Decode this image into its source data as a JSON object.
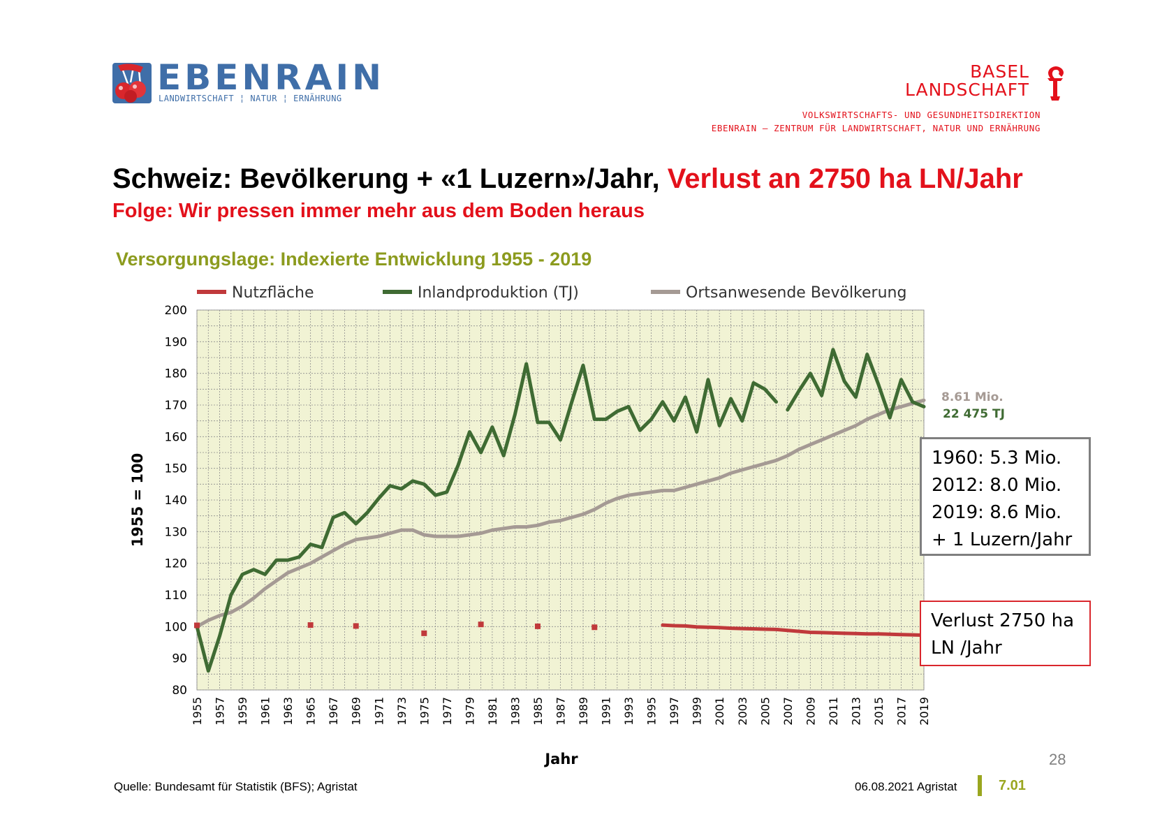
{
  "header": {
    "logo_name": "EBENRAIN",
    "logo_tagline": "LANDWIRTSCHAFT ¦ NATUR ¦ ERNÄHRUNG",
    "canton_line1": "BASEL",
    "canton_line2": "LANDSCHAFT",
    "department_line1": "VOLKSWIRTSCHAFTS- UND GESUNDHEITSDIREKTION",
    "department_line2": "EBENRAIN – ZENTRUM FÜR LANDWIRTSCHAFT, NATUR UND ERNÄHRUNG",
    "brand_blue": "#3f6ea8",
    "brand_red": "#e3111b"
  },
  "slide": {
    "title_black": "Schweiz: Bevölkerung + «1 Luzern»/Jahr, ",
    "title_red": "Verlust an 2750 ha LN/Jahr",
    "subtitle": "Folge: Wir pressen immer mehr aus dem Boden heraus",
    "page_number": "28"
  },
  "chart_data": {
    "type": "line",
    "title": "Versorgungslage: Indexierte Entwicklung 1955 - 2019",
    "xlabel": "Jahr",
    "ylabel": "1955 = 100",
    "ylim": [
      80,
      200
    ],
    "xlim": [
      1955,
      2019
    ],
    "yticks": [
      80,
      90,
      100,
      110,
      120,
      130,
      140,
      150,
      160,
      170,
      180,
      190,
      200
    ],
    "xticks": [
      1955,
      1957,
      1959,
      1961,
      1963,
      1965,
      1967,
      1969,
      1971,
      1973,
      1975,
      1977,
      1979,
      1981,
      1983,
      1985,
      1987,
      1989,
      1991,
      1993,
      1995,
      1997,
      1999,
      2001,
      2003,
      2005,
      2007,
      2009,
      2011,
      2013,
      2015,
      2017,
      2019
    ],
    "grid": true,
    "legend_position": "top",
    "background_color": "#f1f3d4",
    "series": [
      {
        "name": "Nutzfläche",
        "color": "#c0393b",
        "points": [
          [
            1955,
            100.4
          ],
          [
            1965,
            100.5
          ],
          [
            1969,
            100.2
          ],
          [
            1975,
            97.9
          ],
          [
            1980,
            100.7
          ],
          [
            1985,
            100.1
          ],
          [
            1990,
            99.8
          ],
          [
            1996,
            100.5
          ],
          [
            1997,
            100.3
          ],
          [
            1998,
            100.2
          ],
          [
            1999,
            99.9
          ],
          [
            2000,
            99.8
          ],
          [
            2001,
            99.7
          ],
          [
            2002,
            99.5
          ],
          [
            2003,
            99.4
          ],
          [
            2004,
            99.3
          ],
          [
            2005,
            99.2
          ],
          [
            2006,
            99.1
          ],
          [
            2007,
            98.8
          ],
          [
            2008,
            98.5
          ],
          [
            2009,
            98.2
          ],
          [
            2010,
            98.1
          ],
          [
            2011,
            98.0
          ],
          [
            2012,
            97.9
          ],
          [
            2013,
            97.8
          ],
          [
            2014,
            97.7
          ],
          [
            2015,
            97.7
          ],
          [
            2016,
            97.6
          ],
          [
            2017,
            97.5
          ],
          [
            2018,
            97.4
          ],
          [
            2019,
            97.3
          ]
        ]
      },
      {
        "name": "Inlandproduktion (TJ)",
        "color": "#3f6b33",
        "points": [
          [
            1955,
            100
          ],
          [
            1956,
            86
          ],
          [
            1957,
            97
          ],
          [
            1958,
            110
          ],
          [
            1959,
            116.5
          ],
          [
            1960,
            118
          ],
          [
            1961,
            116.5
          ],
          [
            1962,
            121
          ],
          [
            1963,
            121
          ],
          [
            1964,
            122
          ],
          [
            1965,
            126
          ],
          [
            1966,
            125
          ],
          [
            1967,
            134.5
          ],
          [
            1968,
            136
          ],
          [
            1969,
            132.5
          ],
          [
            1970,
            136
          ],
          [
            1971,
            140.5
          ],
          [
            1972,
            144.5
          ],
          [
            1973,
            143.5
          ],
          [
            1974,
            146
          ],
          [
            1975,
            145
          ],
          [
            1976,
            141.5
          ],
          [
            1977,
            142.5
          ],
          [
            1978,
            151
          ],
          [
            1979,
            161.5
          ],
          [
            1980,
            155
          ],
          [
            1981,
            163
          ],
          [
            1982,
            154
          ],
          [
            1983,
            167
          ],
          [
            1984,
            183
          ],
          [
            1985,
            164.5
          ],
          [
            1986,
            164.5
          ],
          [
            1987,
            159
          ],
          [
            1988,
            171
          ],
          [
            1989,
            182.5
          ],
          [
            1990,
            165.5
          ],
          [
            1991,
            165.5
          ],
          [
            1992,
            168
          ],
          [
            1993,
            169.5
          ],
          [
            1994,
            162
          ],
          [
            1995,
            165.5
          ],
          [
            1996,
            171
          ],
          [
            1997,
            165
          ],
          [
            1998,
            172.5
          ],
          [
            1999,
            161.5
          ],
          [
            2000,
            178
          ],
          [
            2001,
            163.5
          ],
          [
            2002,
            172
          ],
          [
            2003,
            165
          ],
          [
            2004,
            177
          ],
          [
            2005,
            175
          ],
          [
            2006,
            171
          ],
          [
            null,
            null
          ],
          [
            2007,
            168.5
          ],
          [
            2008,
            174.5
          ],
          [
            2009,
            180
          ],
          [
            2010,
            173
          ],
          [
            2011,
            187.5
          ],
          [
            2012,
            177.5
          ],
          [
            2013,
            172.5
          ],
          [
            2014,
            186
          ],
          [
            2015,
            176.5
          ],
          [
            2016,
            166
          ],
          [
            2017,
            178
          ],
          [
            2018,
            171
          ],
          [
            2019,
            169.5
          ]
        ]
      },
      {
        "name": "Ortsanwesende Bevölkerung",
        "color": "#a59a94",
        "points": [
          [
            1955,
            100
          ],
          [
            1956,
            102
          ],
          [
            1957,
            103.5
          ],
          [
            1958,
            104.5
          ],
          [
            1959,
            106.5
          ],
          [
            1960,
            109
          ],
          [
            1961,
            112
          ],
          [
            1962,
            114.5
          ],
          [
            1963,
            117
          ],
          [
            1964,
            118.5
          ],
          [
            1965,
            120
          ],
          [
            1966,
            122
          ],
          [
            1967,
            124
          ],
          [
            1968,
            126
          ],
          [
            1969,
            127.5
          ],
          [
            1970,
            128
          ],
          [
            1971,
            128.5
          ],
          [
            1972,
            129.5
          ],
          [
            1973,
            130.5
          ],
          [
            1974,
            130.5
          ],
          [
            1975,
            129
          ],
          [
            1976,
            128.5
          ],
          [
            1977,
            128.5
          ],
          [
            1978,
            128.5
          ],
          [
            1979,
            129
          ],
          [
            1980,
            129.5
          ],
          [
            1981,
            130.5
          ],
          [
            1982,
            131
          ],
          [
            1983,
            131.5
          ],
          [
            1984,
            131.5
          ],
          [
            1985,
            132
          ],
          [
            1986,
            133
          ],
          [
            1987,
            133.5
          ],
          [
            1988,
            134.5
          ],
          [
            1989,
            135.5
          ],
          [
            1990,
            137
          ],
          [
            1991,
            139
          ],
          [
            1992,
            140.5
          ],
          [
            1993,
            141.5
          ],
          [
            1994,
            142
          ],
          [
            1995,
            142.5
          ],
          [
            1996,
            143
          ],
          [
            1997,
            143
          ],
          [
            1998,
            144
          ],
          [
            1999,
            145
          ],
          [
            2000,
            146
          ],
          [
            2001,
            147
          ],
          [
            2002,
            148.5
          ],
          [
            2003,
            149.5
          ],
          [
            2004,
            150.5
          ],
          [
            2005,
            151.5
          ],
          [
            2006,
            152.5
          ],
          [
            2007,
            154
          ],
          [
            2008,
            156
          ],
          [
            2009,
            157.5
          ],
          [
            2010,
            159
          ],
          [
            2011,
            160.5
          ],
          [
            2012,
            162
          ],
          [
            2013,
            163.5
          ],
          [
            2014,
            165.5
          ],
          [
            2015,
            167
          ],
          [
            2016,
            168.5
          ],
          [
            2017,
            169.5
          ],
          [
            2018,
            170.5
          ],
          [
            2019,
            171.5
          ]
        ]
      }
    ],
    "end_labels": [
      {
        "text": "8.61 Mio.",
        "color": "#a59a94"
      },
      {
        "text": "22 475 TJ",
        "color": "#3f6b33"
      }
    ]
  },
  "info_boxes": {
    "population_lines": [
      "1960: 5.3 Mio.",
      "2012: 8.0 Mio.",
      "2019: 8.6 Mio.",
      "+ 1 Luzern/Jahr"
    ],
    "loss_lines": [
      "Verlust 2750 ha",
      "LN /Jahr"
    ]
  },
  "footer": {
    "source": "Quelle: Bundesamt für Statistik (BFS); Agristat",
    "date": "06.08.2021 Agristat",
    "version": "7.01",
    "accent_color": "#9aa61f"
  }
}
